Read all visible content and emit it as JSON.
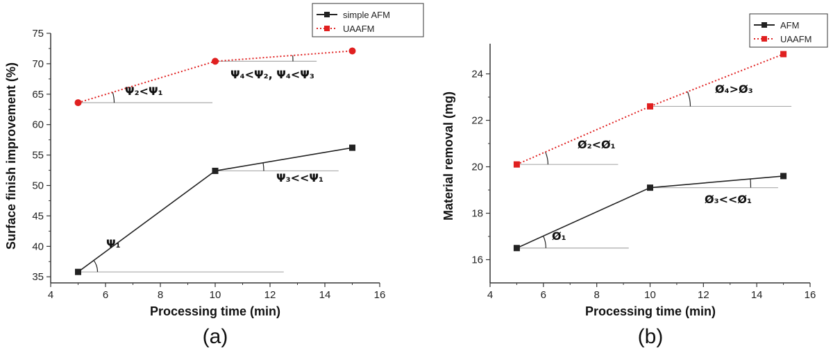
{
  "chart_data": [
    {
      "panel_caption": "(a)",
      "type": "line",
      "xlabel": "Processing time (min)",
      "ylabel": "Surface finish improvement (%)",
      "xlim": [
        4,
        16
      ],
      "ylim": [
        34,
        75
      ],
      "x_ticks": [
        4,
        6,
        8,
        10,
        12,
        14,
        16
      ],
      "y_ticks": [
        35,
        40,
        45,
        50,
        55,
        60,
        65,
        70,
        75
      ],
      "grid": false,
      "legend_position": "top-right",
      "series": [
        {
          "name": "simple AFM",
          "x": [
            5,
            10,
            15
          ],
          "y": [
            35.8,
            52.4,
            56.2
          ],
          "color": "#222222",
          "marker": "square",
          "style": "solid"
        },
        {
          "name": "UAAFM",
          "x": [
            5,
            10,
            15
          ],
          "y": [
            63.6,
            70.4,
            72.1
          ],
          "color": "#e02020",
          "marker": "circle",
          "style": "dotted"
        }
      ],
      "annotations": [
        {
          "text": "Ψ₁",
          "x": 5,
          "y": 35.8
        },
        {
          "text": "Ψ₂<Ψ₁",
          "x": 5,
          "y": 63.6
        },
        {
          "text": "Ψ₃<<Ψ₁",
          "x": 10,
          "y": 52.4
        },
        {
          "text": "Ψ₄<Ψ₂, Ψ₄<Ψ₃",
          "x": 10,
          "y": 70.4
        }
      ]
    },
    {
      "panel_caption": "(b)",
      "type": "line",
      "xlabel": "Processing time (min)",
      "ylabel": "Material removal (mg)",
      "xlim": [
        4,
        16
      ],
      "ylim": [
        15,
        25.3
      ],
      "x_ticks": [
        4,
        6,
        8,
        10,
        12,
        14,
        16
      ],
      "y_ticks": [
        16,
        18,
        20,
        22,
        24
      ],
      "grid": false,
      "legend_position": "top-right",
      "series": [
        {
          "name": "AFM",
          "x": [
            5,
            10,
            15
          ],
          "y": [
            16.5,
            19.1,
            19.6
          ],
          "color": "#222222",
          "marker": "square",
          "style": "solid"
        },
        {
          "name": "UAAFM",
          "x": [
            5,
            10,
            15
          ],
          "y": [
            20.1,
            22.6,
            24.85
          ],
          "color": "#e02020",
          "marker": "square",
          "style": "dotted"
        }
      ],
      "annotations": [
        {
          "text": "Ø₁",
          "x": 5,
          "y": 16.5
        },
        {
          "text": "Ø₂<Ø₁",
          "x": 5,
          "y": 20.1
        },
        {
          "text": "Ø₃<<Ø₁",
          "x": 10,
          "y": 19.1
        },
        {
          "text": "Ø₄>Ø₃",
          "x": 10,
          "y": 22.6
        }
      ]
    }
  ]
}
